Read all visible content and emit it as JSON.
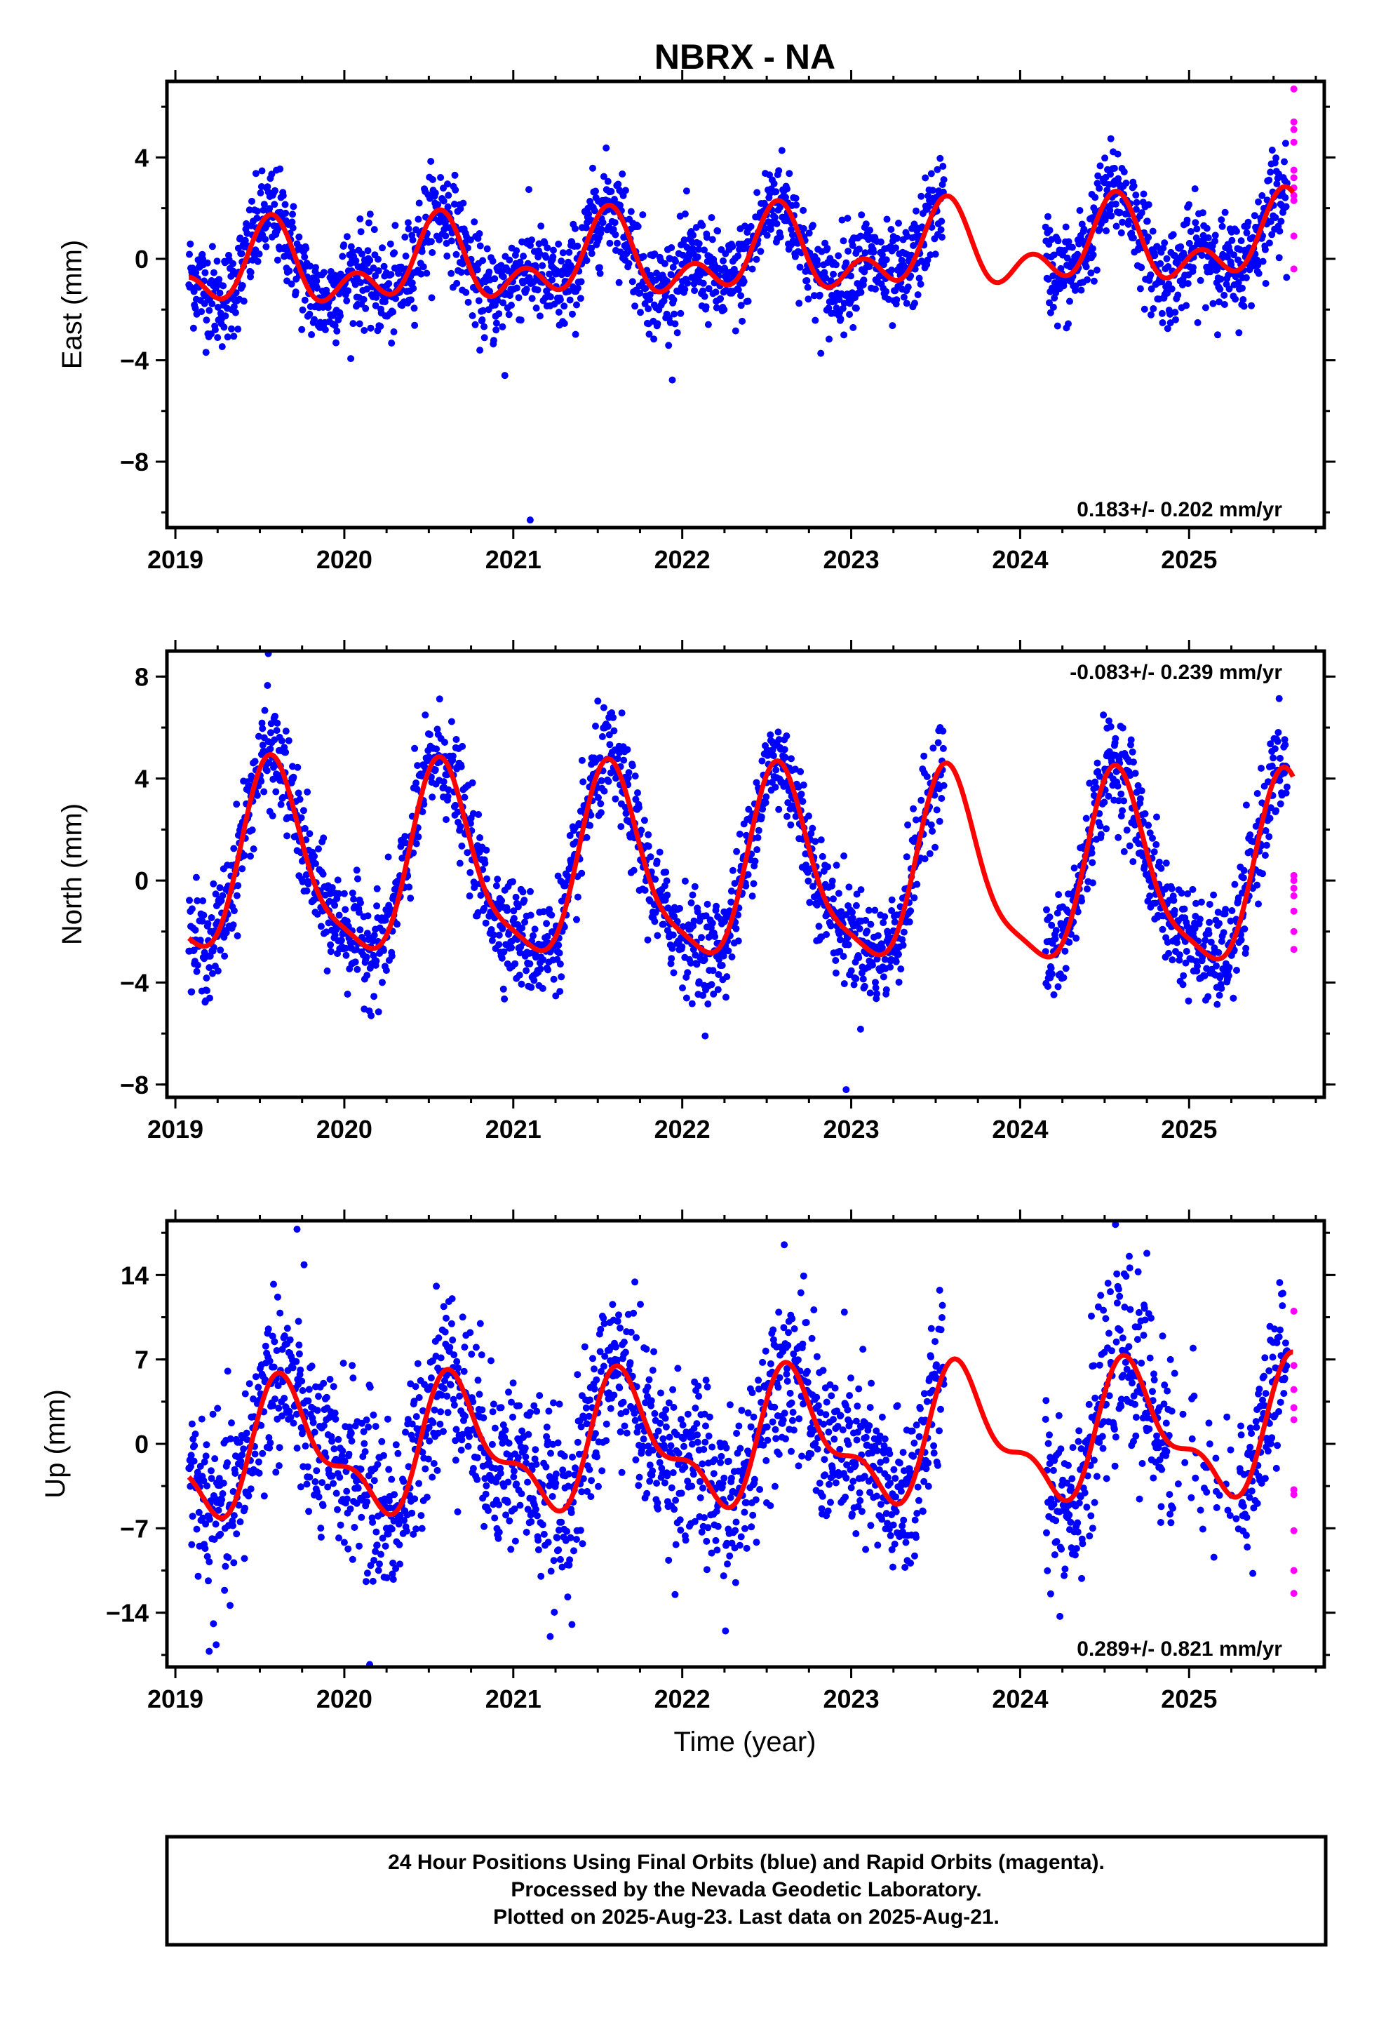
{
  "figure": {
    "title": "NBRX - NA",
    "xlabel": "Time (year)",
    "caption": [
      "24 Hour Positions Using Final Orbits (blue) and Rapid Orbits (magenta).",
      "Processed by the Nevada Geodetic Laboratory.",
      "Plotted on 2025-Aug-23. Last data on 2025-Aug-21."
    ]
  },
  "colors": {
    "final": "#0000ff",
    "rapid": "#ff00ff",
    "model": "#ff0000",
    "axes": "#000000"
  },
  "chart_data": [
    {
      "type": "scatter",
      "ylabel": "East (mm)",
      "rate_label": "0.183+/- 0.202 mm/yr",
      "rate_position": "bottom-right",
      "xlim": [
        2018.95,
        2025.8
      ],
      "ylim": [
        -10.6,
        7.0
      ],
      "x_ticks": [
        2019,
        2020,
        2021,
        2022,
        2023,
        2024,
        2025
      ],
      "x_tick_labels": [
        "2019",
        "2020",
        "2021",
        "2022",
        "2023",
        "2024",
        "2025"
      ],
      "y_ticks": [
        -8,
        -4,
        0,
        4
      ],
      "y_tick_labels": [
        "−8",
        "−4",
        "0",
        "4"
      ],
      "model": {
        "offset": 0.0,
        "trend": 0.183,
        "t0": 2022.0,
        "annual_amp": 1.2,
        "annual_phase_deg": -110,
        "semi_amp": 1.0,
        "semi_phase_deg": 40
      },
      "scatter": {
        "noise": 0.95,
        "gap": [
          2023.55,
          2024.15
        ]
      },
      "outliers": [
        [
          2021.1,
          -10.3
        ],
        [
          2020.95,
          -4.6
        ]
      ],
      "rapid_points": {
        "x": [
          2025.62,
          2025.62,
          2025.62,
          2025.62,
          2025.62,
          2025.62,
          2025.62,
          2025.62,
          2025.62,
          2025.62,
          2025.62
        ],
        "y": [
          6.7,
          5.4,
          5.1,
          4.6,
          3.5,
          3.2,
          2.8,
          2.5,
          2.3,
          0.9,
          -0.4
        ]
      }
    },
    {
      "type": "scatter",
      "ylabel": "North (mm)",
      "rate_label": "-0.083+/- 0.239 mm/yr",
      "rate_position": "top-right",
      "xlim": [
        2018.95,
        2025.8
      ],
      "ylim": [
        -8.5,
        9.0
      ],
      "x_ticks": [
        2019,
        2020,
        2021,
        2022,
        2023,
        2024,
        2025
      ],
      "x_tick_labels": [
        "2019",
        "2020",
        "2021",
        "2022",
        "2023",
        "2024",
        "2025"
      ],
      "y_ticks": [
        -8,
        -4,
        0,
        4,
        8
      ],
      "y_tick_labels": [
        "−8",
        "−4",
        "0",
        "4",
        "8"
      ],
      "model": {
        "offset": 0.3,
        "trend": -0.083,
        "t0": 2022.0,
        "annual_amp": 3.6,
        "annual_phase_deg": -120,
        "semi_amp": 0.9,
        "semi_phase_deg": 60
      },
      "scatter": {
        "noise": 1.0,
        "gap": [
          2023.55,
          2024.15
        ]
      },
      "outliers": [
        [
          2019.55,
          8.9
        ],
        [
          2022.97,
          -8.2
        ]
      ],
      "rapid_points": {
        "x": [
          2025.62,
          2025.62,
          2025.62,
          2025.62,
          2025.62,
          2025.62,
          2025.62
        ],
        "y": [
          0.2,
          0.0,
          -0.3,
          -0.6,
          -1.2,
          -2.0,
          -2.7
        ]
      }
    },
    {
      "type": "scatter",
      "ylabel": "Up (mm)",
      "rate_label": "0.289+/- 0.821 mm/yr",
      "rate_position": "bottom-right",
      "xlim": [
        2018.95,
        2025.8
      ],
      "ylim": [
        -18.5,
        18.5
      ],
      "x_ticks": [
        2019,
        2020,
        2021,
        2022,
        2023,
        2024,
        2025
      ],
      "x_tick_labels": [
        "2019",
        "2020",
        "2021",
        "2022",
        "2023",
        "2024",
        "2025"
      ],
      "y_ticks": [
        -14,
        -7,
        0,
        7,
        14
      ],
      "y_tick_labels": [
        "−14",
        "−7",
        "0",
        "7",
        "14"
      ],
      "model": {
        "offset": 0.0,
        "trend": 0.289,
        "t0": 2022.0,
        "annual_amp": 4.8,
        "annual_phase_deg": -150,
        "semi_amp": 2.2,
        "semi_phase_deg": 30
      },
      "scatter": {
        "noise": 3.6,
        "gap": [
          2023.55,
          2024.15
        ]
      },
      "outliers": [
        [
          2019.2,
          -17.2
        ],
        [
          2020.15,
          -18.3
        ],
        [
          2019.72,
          17.8
        ],
        [
          2024.75,
          15.8
        ]
      ],
      "rapid_points": {
        "x": [
          2025.62,
          2025.62,
          2025.62,
          2025.62,
          2025.62,
          2025.62,
          2025.62,
          2025.62,
          2025.62,
          2025.62
        ],
        "y": [
          11.0,
          6.5,
          4.5,
          3.0,
          2.0,
          -3.8,
          -4.2,
          -7.2,
          -10.5,
          -12.4
        ]
      }
    }
  ]
}
